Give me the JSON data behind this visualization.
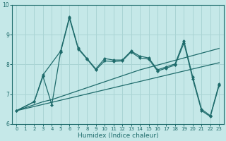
{
  "xlabel": "Humidex (Indice chaleur)",
  "xlim": [
    -0.5,
    23.5
  ],
  "ylim": [
    6,
    10
  ],
  "xticks": [
    0,
    1,
    2,
    3,
    4,
    5,
    6,
    7,
    8,
    9,
    10,
    11,
    12,
    13,
    14,
    15,
    16,
    17,
    18,
    19,
    20,
    21,
    22,
    23
  ],
  "yticks": [
    6,
    7,
    8,
    9,
    10
  ],
  "bg_color": "#c5e8e8",
  "grid_color": "#aad4d4",
  "line_color": "#1e6b6b",
  "line1_x": [
    0,
    1,
    2,
    3,
    4,
    5,
    6,
    7,
    8,
    9,
    10,
    11,
    12,
    13,
    14,
    15,
    16,
    17,
    18,
    19,
    20,
    21,
    22,
    23
  ],
  "line1_y": [
    6.45,
    6.52,
    6.59,
    6.66,
    6.73,
    6.8,
    6.87,
    6.94,
    7.01,
    7.08,
    7.15,
    7.22,
    7.29,
    7.36,
    7.43,
    7.5,
    7.57,
    7.64,
    7.71,
    7.78,
    7.85,
    7.92,
    7.99,
    8.06
  ],
  "line2_x": [
    0,
    1,
    2,
    3,
    4,
    5,
    6,
    7,
    8,
    9,
    10,
    11,
    12,
    13,
    14,
    15,
    16,
    17,
    18,
    19,
    20,
    21,
    22,
    23
  ],
  "line2_y": [
    6.45,
    6.55,
    6.65,
    6.75,
    6.82,
    6.92,
    7.02,
    7.12,
    7.22,
    7.32,
    7.42,
    7.52,
    7.62,
    7.72,
    7.82,
    7.9,
    7.98,
    8.06,
    8.14,
    8.22,
    8.3,
    8.38,
    8.46,
    8.54
  ],
  "line3_x": [
    0,
    2,
    3,
    5,
    6,
    7,
    8,
    9,
    10,
    11,
    12,
    13,
    14,
    15,
    16,
    17,
    18,
    19,
    20,
    21,
    22,
    23
  ],
  "line3_y": [
    6.45,
    6.75,
    7.65,
    8.45,
    9.6,
    8.55,
    8.2,
    7.85,
    8.2,
    8.15,
    8.15,
    8.45,
    8.28,
    8.22,
    7.82,
    7.92,
    8.02,
    8.8,
    7.58,
    6.5,
    6.28,
    7.35
  ],
  "line4_x": [
    0,
    2,
    3,
    4,
    5,
    6,
    7,
    8,
    9,
    10,
    11,
    12,
    13,
    14,
    15,
    16,
    17,
    18,
    19,
    20,
    21,
    22,
    23
  ],
  "line4_y": [
    6.45,
    6.75,
    7.6,
    6.65,
    8.42,
    9.55,
    8.52,
    8.18,
    7.82,
    8.12,
    8.1,
    8.12,
    8.42,
    8.22,
    8.18,
    7.78,
    7.88,
    7.98,
    8.72,
    7.52,
    6.45,
    6.25,
    7.3
  ]
}
